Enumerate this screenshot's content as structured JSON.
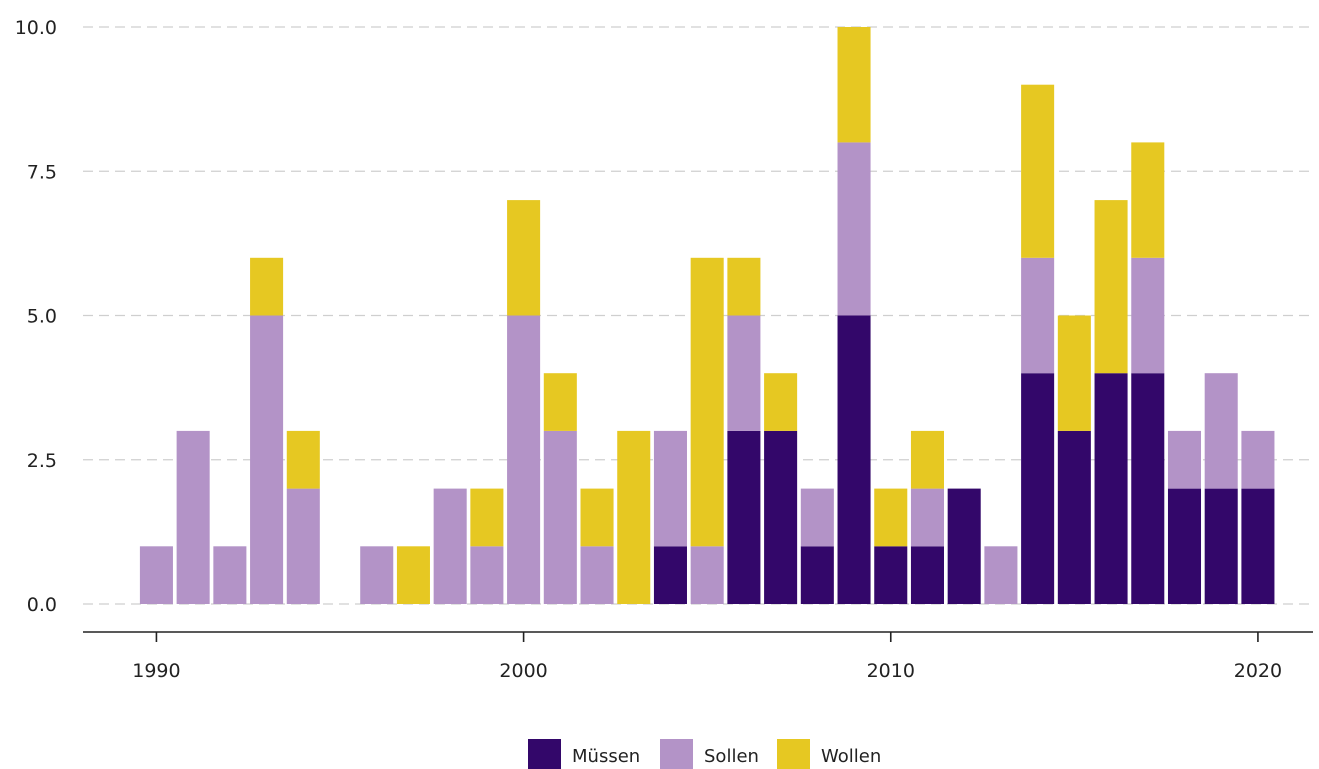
{
  "chart_data": {
    "type": "bar",
    "stacked": true,
    "x": [
      1990,
      1991,
      1992,
      1993,
      1994,
      1995,
      1996,
      1997,
      1998,
      1999,
      2000,
      2001,
      2002,
      2003,
      2004,
      2005,
      2006,
      2007,
      2008,
      2009,
      2010,
      2011,
      2012,
      2013,
      2014,
      2015,
      2016,
      2017,
      2018,
      2019,
      2020
    ],
    "series": [
      {
        "name": "Müssen",
        "color": "#33076a",
        "values": [
          0,
          0,
          0,
          0,
          0,
          0,
          0,
          0,
          0,
          0,
          0,
          0,
          0,
          0,
          1,
          0,
          3,
          3,
          1,
          5,
          1,
          1,
          2,
          0,
          4,
          3,
          4,
          4,
          2,
          2,
          2
        ]
      },
      {
        "name": "Sollen",
        "color": "#b393c7",
        "values": [
          1,
          3,
          1,
          5,
          2,
          0,
          1,
          0,
          2,
          1,
          5,
          3,
          1,
          0,
          2,
          1,
          2,
          0,
          1,
          3,
          0,
          1,
          0,
          1,
          2,
          0,
          0,
          2,
          1,
          2,
          1
        ]
      },
      {
        "name": "Wollen",
        "color": "#e6c822",
        "values": [
          0,
          0,
          0,
          1,
          1,
          0,
          0,
          1,
          0,
          1,
          2,
          1,
          1,
          3,
          0,
          5,
          1,
          1,
          0,
          2,
          1,
          1,
          0,
          0,
          3,
          2,
          3,
          2,
          0,
          0,
          0
        ]
      }
    ],
    "xticks": [
      1990,
      2000,
      2010,
      2020
    ],
    "xtick_labels": [
      "1990",
      "2000",
      "2010",
      "2020"
    ],
    "yticks": [
      0,
      2.5,
      5,
      7.5,
      10
    ],
    "ytick_labels": [
      "0.0",
      "2.5",
      "5.0",
      "7.5",
      "10.0"
    ],
    "ylim": [
      0,
      10
    ],
    "xlim": [
      1988,
      2021.5
    ],
    "grid": "horizontal dashed",
    "legend_position": "bottom-center",
    "title": "",
    "xlabel": "",
    "ylabel": ""
  }
}
